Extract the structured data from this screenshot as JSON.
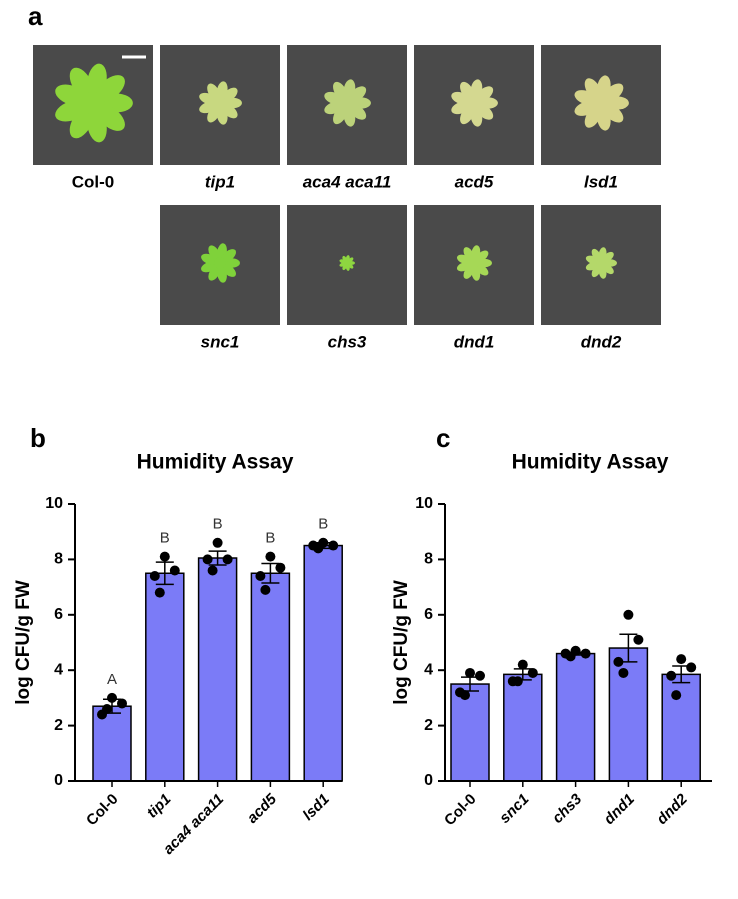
{
  "panel_a": {
    "label": "a",
    "photo_labels": [
      "Col-0",
      "tip1",
      "aca4  aca11",
      "acd5",
      "lsd1",
      "snc1",
      "chs3",
      "dnd1",
      "dnd2"
    ]
  },
  "chart_data": [
    {
      "type": "bar",
      "panel": "b",
      "title": "Humidity Assay",
      "ylabel": "log CFU/g FW",
      "categories": [
        "Col-0",
        "tip1",
        "aca4 aca11",
        "acd5",
        "lsd1"
      ],
      "values": [
        2.7,
        7.5,
        8.05,
        7.5,
        8.5
      ],
      "errors": [
        0.25,
        0.4,
        0.25,
        0.35,
        0.1
      ],
      "points": [
        [
          3.0,
          2.8,
          2.4,
          2.6
        ],
        [
          8.1,
          7.6,
          7.4,
          6.8
        ],
        [
          8.6,
          8.0,
          8.0,
          7.6
        ],
        [
          8.1,
          7.7,
          7.4,
          6.9
        ],
        [
          8.6,
          8.5,
          8.5,
          8.4
        ]
      ],
      "annotations": [
        "A",
        "B",
        "B",
        "B",
        "B"
      ],
      "color": "#7b7bf7",
      "point_color": "#000000",
      "ylim": [
        0,
        10
      ],
      "yticks": [
        0,
        2,
        4,
        6,
        8,
        10
      ]
    },
    {
      "type": "bar",
      "panel": "c",
      "title": "Humidity Assay",
      "ylabel": "log CFU/g FW",
      "categories": [
        "Col-0",
        "snc1",
        "chs3",
        "dnd1",
        "dnd2"
      ],
      "values": [
        3.5,
        3.85,
        4.6,
        4.8,
        3.85
      ],
      "errors": [
        0.25,
        0.2,
        0.05,
        0.5,
        0.3
      ],
      "points": [
        [
          3.9,
          3.8,
          3.2,
          3.1
        ],
        [
          4.2,
          3.9,
          3.6,
          3.6
        ],
        [
          4.7,
          4.6,
          4.6,
          4.5
        ],
        [
          6.0,
          5.1,
          4.3,
          3.9
        ],
        [
          4.4,
          4.1,
          3.8,
          3.1
        ]
      ],
      "color": "#7b7bf7",
      "point_color": "#000000",
      "ylim": [
        0,
        10
      ],
      "yticks": [
        0,
        2,
        4,
        6,
        8,
        10
      ]
    }
  ]
}
